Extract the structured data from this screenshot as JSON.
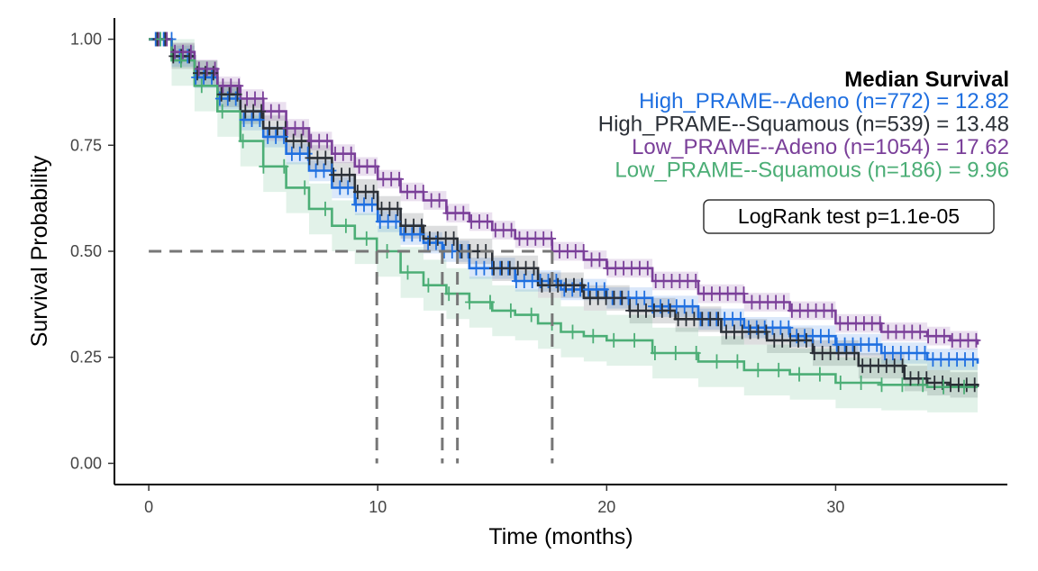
{
  "chart_data": {
    "type": "line",
    "subtype": "kaplan-meier",
    "xlabel": "Time (months)",
    "ylabel": "Survival Probability",
    "xlim": [
      -1.5,
      37.5
    ],
    "ylim": [
      -0.05,
      1.05
    ],
    "xticks": [
      0,
      10,
      20,
      30
    ],
    "yticks": [
      0.0,
      0.25,
      0.5,
      0.75,
      1.0
    ],
    "ytick_labels": [
      "0.00",
      "0.25",
      "0.50",
      "0.75",
      "1.00"
    ],
    "grid": false,
    "legend": {
      "title": "Median Survival",
      "placement": "top-right"
    },
    "pvalue_label": "LogRank test p=1.1e-05",
    "median_reference_y": 0.5,
    "series": [
      {
        "name": "High_PRAME--Adeno",
        "legend_label": "High_PRAME--Adeno (n=772) = 12.82",
        "color": "#1f6fe0",
        "median": 12.82,
        "x": [
          0,
          1,
          2,
          3,
          4,
          5,
          6,
          7,
          8,
          9,
          10,
          11,
          12,
          12.82,
          14,
          16,
          18,
          20,
          22,
          24,
          26,
          28,
          30,
          32,
          34,
          36.2
        ],
        "y": [
          1.0,
          0.96,
          0.91,
          0.86,
          0.81,
          0.77,
          0.73,
          0.69,
          0.65,
          0.61,
          0.57,
          0.54,
          0.52,
          0.5,
          0.46,
          0.43,
          0.41,
          0.39,
          0.37,
          0.34,
          0.32,
          0.3,
          0.28,
          0.26,
          0.245,
          0.235
        ],
        "ci_halfwidth": 0.025
      },
      {
        "name": "High_PRAME--Squamous",
        "legend_label": "High_PRAME--Squamous (n=539) = 13.48",
        "color": "#2a2f36",
        "median": 13.48,
        "x": [
          0,
          1,
          2,
          3,
          4,
          5,
          6,
          7,
          8,
          9,
          10,
          11,
          12,
          13.48,
          15,
          17,
          19,
          21,
          23,
          25,
          27,
          29,
          31,
          33,
          34,
          35,
          36.2
        ],
        "y": [
          1.0,
          0.96,
          0.92,
          0.87,
          0.83,
          0.79,
          0.76,
          0.72,
          0.68,
          0.64,
          0.6,
          0.56,
          0.53,
          0.5,
          0.46,
          0.42,
          0.39,
          0.36,
          0.34,
          0.31,
          0.29,
          0.26,
          0.23,
          0.2,
          0.19,
          0.185,
          0.18
        ],
        "ci_halfwidth": 0.03
      },
      {
        "name": "Low_PRAME--Adeno",
        "legend_label": "Low_PRAME--Adeno (n=1054) = 17.62",
        "color": "#7a3f99",
        "median": 17.62,
        "x": [
          0,
          1,
          2,
          3,
          4,
          5,
          6,
          7,
          8,
          9,
          10,
          11,
          12,
          13,
          14,
          15,
          16,
          17.62,
          19,
          20,
          22,
          24,
          26,
          28,
          30,
          32,
          34,
          35,
          36.2
        ],
        "y": [
          1.0,
          0.97,
          0.93,
          0.89,
          0.86,
          0.83,
          0.79,
          0.76,
          0.73,
          0.7,
          0.67,
          0.64,
          0.62,
          0.59,
          0.57,
          0.55,
          0.53,
          0.5,
          0.48,
          0.46,
          0.43,
          0.4,
          0.38,
          0.36,
          0.33,
          0.31,
          0.3,
          0.29,
          0.28
        ],
        "ci_halfwidth": 0.022
      },
      {
        "name": "Low_PRAME--Squamous",
        "legend_label": "Low_PRAME--Squamous (n=186) = 9.96",
        "color": "#4cae76",
        "median": 9.96,
        "x": [
          0,
          1,
          2,
          3,
          4,
          5,
          6,
          7,
          8,
          9,
          9.96,
          11,
          12,
          13,
          14,
          15,
          16,
          17,
          18,
          19,
          20,
          22,
          24,
          26,
          28,
          30,
          32,
          34,
          36.2
        ],
        "y": [
          1.0,
          0.95,
          0.89,
          0.83,
          0.76,
          0.7,
          0.65,
          0.6,
          0.56,
          0.53,
          0.5,
          0.45,
          0.42,
          0.4,
          0.38,
          0.36,
          0.35,
          0.33,
          0.31,
          0.3,
          0.29,
          0.26,
          0.24,
          0.22,
          0.21,
          0.19,
          0.185,
          0.18,
          0.18
        ],
        "ci_halfwidth": 0.06
      }
    ]
  }
}
